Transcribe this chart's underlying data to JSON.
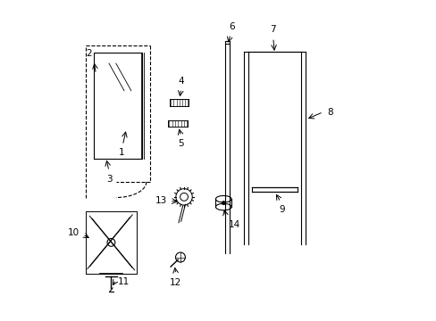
{
  "bg_color": "#ffffff",
  "line_color": "#000000",
  "figsize": [
    4.89,
    3.6
  ],
  "dpi": 100
}
